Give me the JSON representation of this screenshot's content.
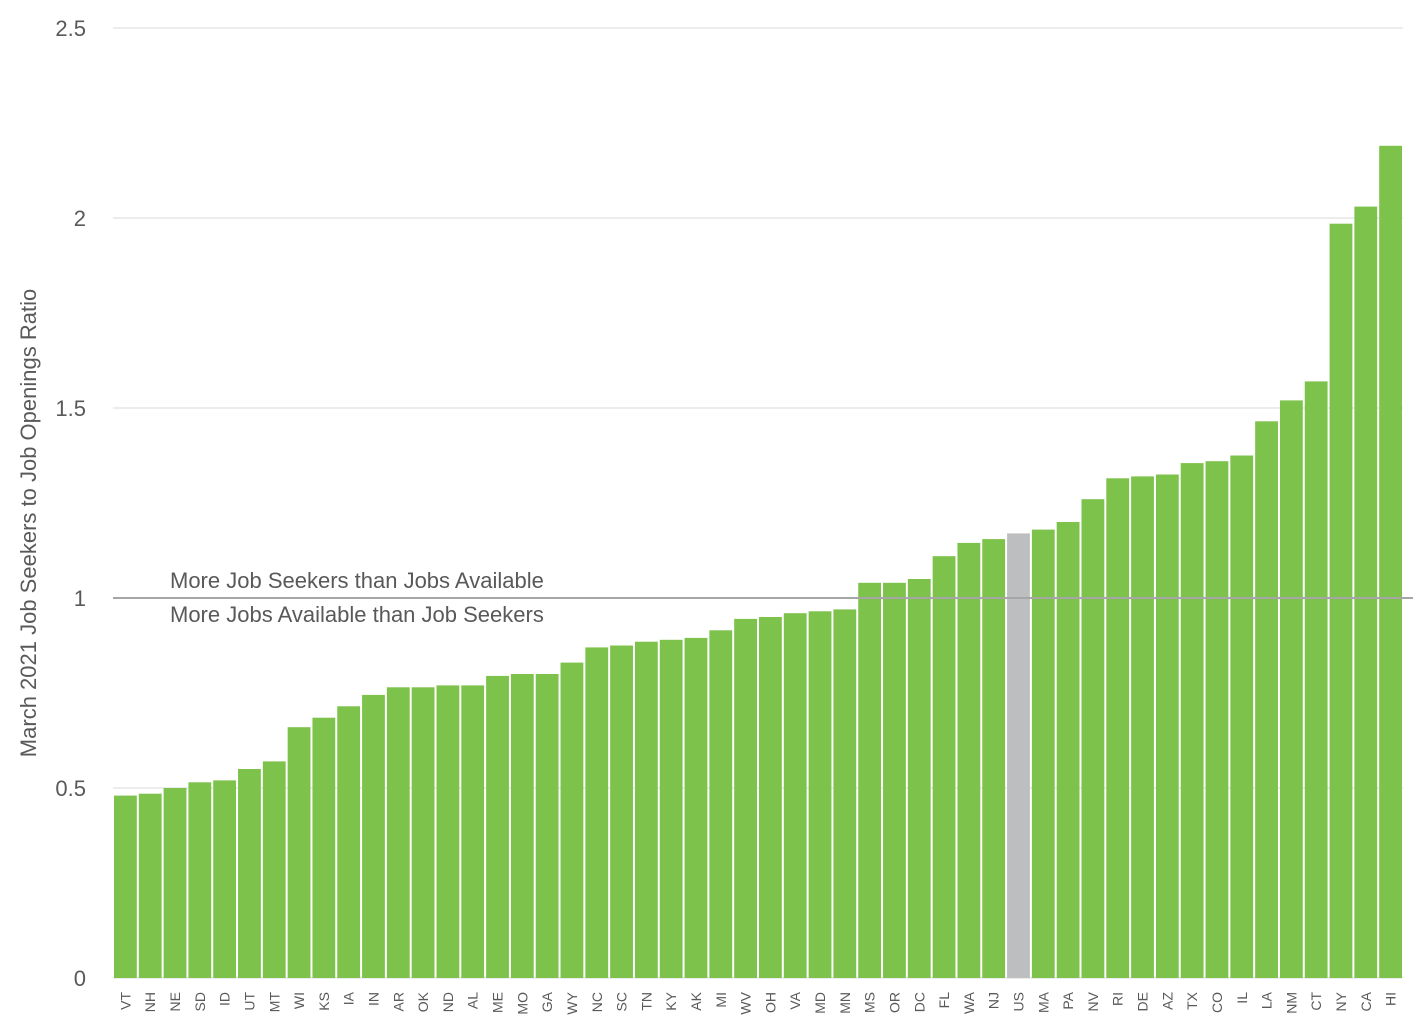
{
  "chart_data": {
    "type": "bar",
    "ylabel": "March 2021 Job Seekers to Job Openings Ratio",
    "ylim": [
      0,
      2.5
    ],
    "yticks": [
      "0",
      "0.5",
      "1",
      "1.5",
      "2",
      "2.5"
    ],
    "grid": true,
    "reference_line": {
      "value": 1,
      "label_above": "More Job Seekers than Jobs Available",
      "label_below": "More Jobs Available than Job Seekers"
    },
    "colors": {
      "bar": "#7dc24b",
      "highlight": "#bcbec0"
    },
    "highlight_category": "US",
    "categories": [
      "VT",
      "NH",
      "NE",
      "SD",
      "ID",
      "UT",
      "MT",
      "WI",
      "KS",
      "IA",
      "IN",
      "AR",
      "OK",
      "ND",
      "AL",
      "ME",
      "MO",
      "GA",
      "WY",
      "NC",
      "SC",
      "TN",
      "KY",
      "AK",
      "MI",
      "WV",
      "OH",
      "VA",
      "MD",
      "MN",
      "MS",
      "OR",
      "DC",
      "FL",
      "WA",
      "NJ",
      "US",
      "MA",
      "PA",
      "NV",
      "RI",
      "DE",
      "AZ",
      "TX",
      "CO",
      "IL",
      "LA",
      "NM",
      "CT",
      "NY",
      "CA",
      "HI"
    ],
    "values": [
      0.48,
      0.485,
      0.5,
      0.515,
      0.52,
      0.55,
      0.57,
      0.66,
      0.685,
      0.715,
      0.745,
      0.765,
      0.765,
      0.77,
      0.77,
      0.795,
      0.8,
      0.8,
      0.83,
      0.87,
      0.875,
      0.885,
      0.89,
      0.895,
      0.915,
      0.945,
      0.95,
      0.96,
      0.965,
      0.97,
      1.04,
      1.04,
      1.05,
      1.11,
      1.145,
      1.155,
      1.17,
      1.18,
      1.2,
      1.26,
      1.315,
      1.32,
      1.325,
      1.355,
      1.36,
      1.375,
      1.465,
      1.52,
      1.57,
      1.985,
      2.03,
      2.19
    ]
  }
}
